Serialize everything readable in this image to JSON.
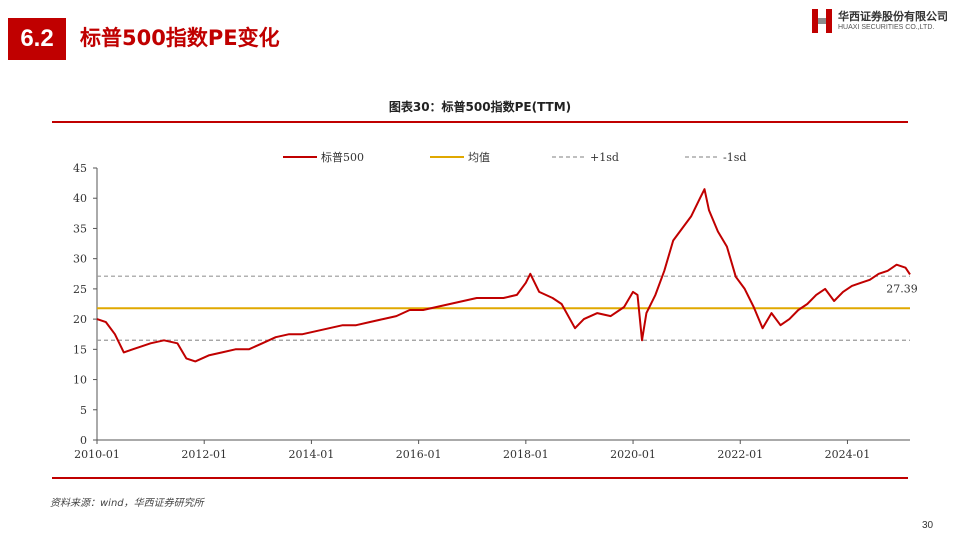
{
  "header": {
    "section_number": "6.2",
    "title": "标普500指数PE变化",
    "logo_cn": "华西证券股份有限公司",
    "logo_en": "HUAXI SECURITIES CO.,LTD."
  },
  "chart_title": "图表30：标普500指数PE(TTM)",
  "source": "资料来源：wind，华西证券研究所",
  "page_number": "30",
  "colors": {
    "brand": "#c00000",
    "pe_line": "#c00000",
    "mean_line": "#e0a800",
    "sd_line": "#999999"
  },
  "chart_data": {
    "type": "line",
    "title": "图表30：标普500指数PE(TTM)",
    "xlabel": "",
    "ylabel": "",
    "ylim": [
      0,
      45
    ],
    "yticks": [
      0,
      5,
      10,
      15,
      20,
      25,
      30,
      35,
      40,
      45
    ],
    "xlim": [
      "2010-01",
      "2025-03"
    ],
    "xticks": [
      "2010-01",
      "2012-01",
      "2014-01",
      "2016-01",
      "2018-01",
      "2020-01",
      "2022-01",
      "2024-01"
    ],
    "legend_position": "top",
    "last_value_label": "27.39",
    "series": [
      {
        "name": "标普500",
        "x": [
          "2010-01",
          "2010-03",
          "2010-05",
          "2010-07",
          "2010-09",
          "2010-11",
          "2011-01",
          "2011-04",
          "2011-07",
          "2011-09",
          "2011-11",
          "2012-02",
          "2012-05",
          "2012-08",
          "2012-11",
          "2013-02",
          "2013-05",
          "2013-08",
          "2013-11",
          "2014-02",
          "2014-05",
          "2014-08",
          "2014-11",
          "2015-02",
          "2015-05",
          "2015-08",
          "2015-11",
          "2016-02",
          "2016-05",
          "2016-08",
          "2016-11",
          "2017-02",
          "2017-05",
          "2017-08",
          "2017-11",
          "2018-01",
          "2018-02",
          "2018-04",
          "2018-07",
          "2018-09",
          "2018-12",
          "2019-02",
          "2019-05",
          "2019-08",
          "2019-11",
          "2020-01",
          "2020-02",
          "2020-03",
          "2020-04",
          "2020-06",
          "2020-08",
          "2020-10",
          "2020-12",
          "2021-02",
          "2021-04",
          "2021-05",
          "2021-06",
          "2021-08",
          "2021-10",
          "2021-12",
          "2022-02",
          "2022-04",
          "2022-06",
          "2022-08",
          "2022-10",
          "2022-12",
          "2023-02",
          "2023-04",
          "2023-06",
          "2023-08",
          "2023-10",
          "2023-12",
          "2024-02",
          "2024-04",
          "2024-06",
          "2024-08",
          "2024-10",
          "2024-12",
          "2025-02",
          "2025-03"
        ],
        "values": [
          20,
          19.5,
          17.5,
          14.5,
          15,
          15.5,
          16,
          16.5,
          16,
          13.5,
          13,
          14,
          14.5,
          15,
          15,
          16,
          17,
          17.5,
          17.5,
          18,
          18.5,
          19,
          19,
          19.5,
          20,
          20.5,
          21.5,
          21.5,
          22,
          22.5,
          23,
          23.5,
          23.5,
          23.5,
          24,
          26,
          27.5,
          24.5,
          23.5,
          22.5,
          18.5,
          20,
          21,
          20.5,
          22,
          24.5,
          24,
          16.5,
          21,
          24,
          28,
          33,
          35,
          37,
          40,
          41.5,
          38,
          34.5,
          32,
          27,
          25,
          22,
          18.5,
          21,
          19,
          20,
          21.5,
          22.5,
          24,
          25,
          23,
          24.5,
          25.5,
          26,
          26.5,
          27.5,
          28,
          29,
          28.5,
          27.39
        ]
      },
      {
        "name": "均值",
        "values": [
          21.8
        ]
      },
      {
        "name": "+1sd",
        "values": [
          27.1
        ]
      },
      {
        "name": "-1sd",
        "values": [
          16.5
        ]
      }
    ]
  }
}
